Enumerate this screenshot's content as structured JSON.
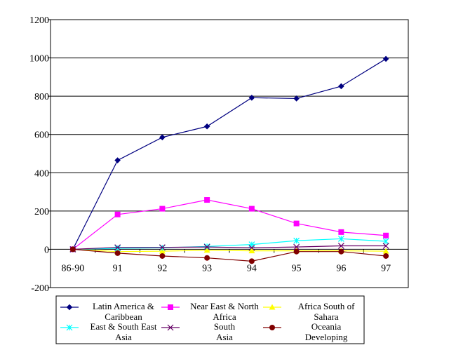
{
  "chart_data": {
    "type": "line",
    "title": "",
    "xlabel": "",
    "ylabel": "",
    "categories": [
      "86-90",
      "91",
      "92",
      "93",
      "94",
      "95",
      "96",
      "97"
    ],
    "ylim": [
      -200,
      1200
    ],
    "yticks": [
      -200,
      0,
      200,
      400,
      600,
      800,
      1000,
      1200
    ],
    "grid": "horizontal",
    "legend_position": "bottom",
    "series": [
      {
        "name": "Latin America & Caribbean",
        "legend_lines": [
          "Latin America &",
          "Caribbean"
        ],
        "color": "#000080",
        "marker": "diamond",
        "values": [
          0,
          465,
          585,
          642,
          792,
          788,
          852,
          995
        ]
      },
      {
        "name": "Near East & North Africa",
        "legend_lines": [
          "Near East & North",
          "Africa"
        ],
        "color": "#ff00ff",
        "marker": "square",
        "values": [
          0,
          182,
          212,
          258,
          212,
          135,
          90,
          72
        ]
      },
      {
        "name": "Africa South of Sahara",
        "legend_lines": [
          "Africa South of",
          "Sahara"
        ],
        "color": "#ffff00",
        "marker": "triangle",
        "values": [
          0,
          -12,
          -10,
          -5,
          -8,
          -8,
          -8,
          -10
        ]
      },
      {
        "name": "East & South East Asia",
        "legend_lines": [
          "East & South East",
          "Asia"
        ],
        "color": "#00ffff",
        "marker": "star",
        "values": [
          0,
          5,
          8,
          15,
          25,
          45,
          55,
          42
        ]
      },
      {
        "name": "South Asia",
        "legend_lines": [
          "South",
          "Asia"
        ],
        "color": "#660066",
        "marker": "asterisk",
        "values": [
          0,
          10,
          10,
          12,
          8,
          12,
          18,
          18
        ]
      },
      {
        "name": "Oceania Developing",
        "legend_lines": [
          "Oceania",
          "Developing"
        ],
        "color": "#800000",
        "marker": "circle",
        "values": [
          0,
          -20,
          -35,
          -45,
          -62,
          -12,
          -12,
          -35
        ]
      }
    ]
  }
}
